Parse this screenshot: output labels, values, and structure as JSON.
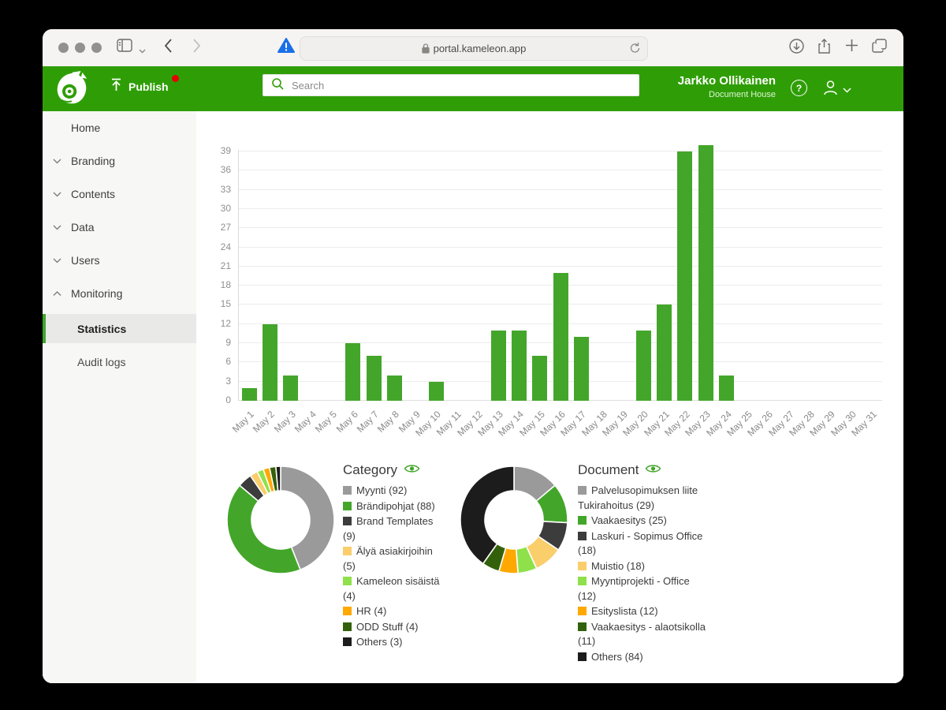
{
  "browser": {
    "url": "portal.kameleon.app"
  },
  "header": {
    "publish_label": "Publish",
    "search_placeholder": "Search",
    "user_name": "Jarkko Ollikainen",
    "org_name": "Document House"
  },
  "sidebar": {
    "items": [
      {
        "label": "Home",
        "chevron": "none"
      },
      {
        "label": "Branding",
        "chevron": "down"
      },
      {
        "label": "Contents",
        "chevron": "down"
      },
      {
        "label": "Data",
        "chevron": "down"
      },
      {
        "label": "Users",
        "chevron": "down"
      },
      {
        "label": "Monitoring",
        "chevron": "up"
      }
    ],
    "sub_items": [
      {
        "label": "Statistics",
        "selected": true
      },
      {
        "label": "Audit logs",
        "selected": false
      }
    ]
  },
  "chart_data": [
    {
      "type": "bar",
      "categories": [
        "May 1",
        "May 2",
        "May 3",
        "May 4",
        "May 5",
        "May 6",
        "May 7",
        "May 8",
        "May 9",
        "May 10",
        "May 11",
        "May 12",
        "May 13",
        "May 14",
        "May 15",
        "May 16",
        "May 17",
        "May 18",
        "May 19",
        "May 20",
        "May 21",
        "May 22",
        "May 23",
        "May 24",
        "May 25",
        "May 26",
        "May 27",
        "May 28",
        "May 29",
        "May 30",
        "May 31"
      ],
      "values": [
        2,
        12,
        4,
        0,
        0,
        9,
        7,
        4,
        0,
        3,
        0,
        0,
        11,
        11,
        7,
        20,
        10,
        0,
        0,
        11,
        15,
        39,
        40,
        4,
        0,
        0,
        0,
        0,
        0,
        0,
        0
      ],
      "yticks": [
        0,
        3,
        6,
        9,
        12,
        15,
        18,
        21,
        24,
        27,
        30,
        33,
        36,
        39
      ],
      "ylim": [
        0,
        39
      ],
      "bar_color": "#43a62a",
      "grid": true,
      "title": "",
      "xlabel": "",
      "ylabel": ""
    },
    {
      "type": "pie",
      "title": "Category",
      "segments": [
        {
          "label": "Myynti",
          "value": 92,
          "color": "#9a9a9a"
        },
        {
          "label": "Brändipohjat",
          "value": 88,
          "color": "#43a62a"
        },
        {
          "label": "Brand Templates",
          "value": 9,
          "color": "#3c3c3c"
        },
        {
          "label": "Älyä asiakirjoihin",
          "value": 5,
          "color": "#f9ce6b"
        },
        {
          "label": "Kameleon sisäistä",
          "value": 4,
          "color": "#8fe14b"
        },
        {
          "label": "HR",
          "value": 4,
          "color": "#ffa800"
        },
        {
          "label": "ODD Stuff",
          "value": 4,
          "color": "#33610b"
        },
        {
          "label": "Others",
          "value": 3,
          "color": "#1c1c1c"
        }
      ]
    },
    {
      "type": "pie",
      "title": "Document",
      "segments": [
        {
          "label": "Palvelusopimuksen liite Tukirahoitus",
          "value": 29,
          "color": "#9a9a9a"
        },
        {
          "label": "Vaakaesitys",
          "value": 25,
          "color": "#43a62a"
        },
        {
          "label": "Laskuri - Sopimus Office",
          "value": 18,
          "color": "#3c3c3c"
        },
        {
          "label": "Muistio",
          "value": 18,
          "color": "#f9ce6b"
        },
        {
          "label": "Myyntiprojekti - Office",
          "value": 12,
          "color": "#8fe14b"
        },
        {
          "label": "Esityslista",
          "value": 12,
          "color": "#ffa800"
        },
        {
          "label": "Vaakaesitys - alaotsikolla",
          "value": 11,
          "color": "#33610b"
        },
        {
          "label": "Others",
          "value": 84,
          "color": "#1c1c1c"
        }
      ]
    }
  ],
  "colors": {
    "header_green": "#2f9e06",
    "bar_green": "#43a62a",
    "publish_badge_red": "#e60000",
    "selected_row_bg": "#e9e9e8"
  }
}
